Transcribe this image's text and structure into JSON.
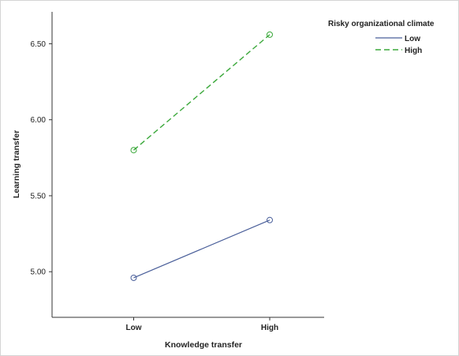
{
  "chart_data": {
    "type": "line",
    "categories": [
      "Low",
      "High"
    ],
    "xlabel": "Knowledge transfer",
    "ylabel": "Learning transfer",
    "ylim": [
      4.7,
      6.71
    ],
    "yticks": [
      "5.00",
      "5.50",
      "6.00",
      "6.50"
    ],
    "grid": false,
    "legend": {
      "title": "Risky organizational climate",
      "placement": "top-right"
    },
    "series": [
      {
        "name": "Low",
        "values": [
          4.96,
          5.34
        ],
        "color": "#4a5f9a",
        "dash": "solid",
        "marker": "circle"
      },
      {
        "name": "High",
        "values": [
          5.8,
          6.56
        ],
        "color": "#3aa83a",
        "dash": "dashed",
        "marker": "circle"
      }
    ]
  }
}
